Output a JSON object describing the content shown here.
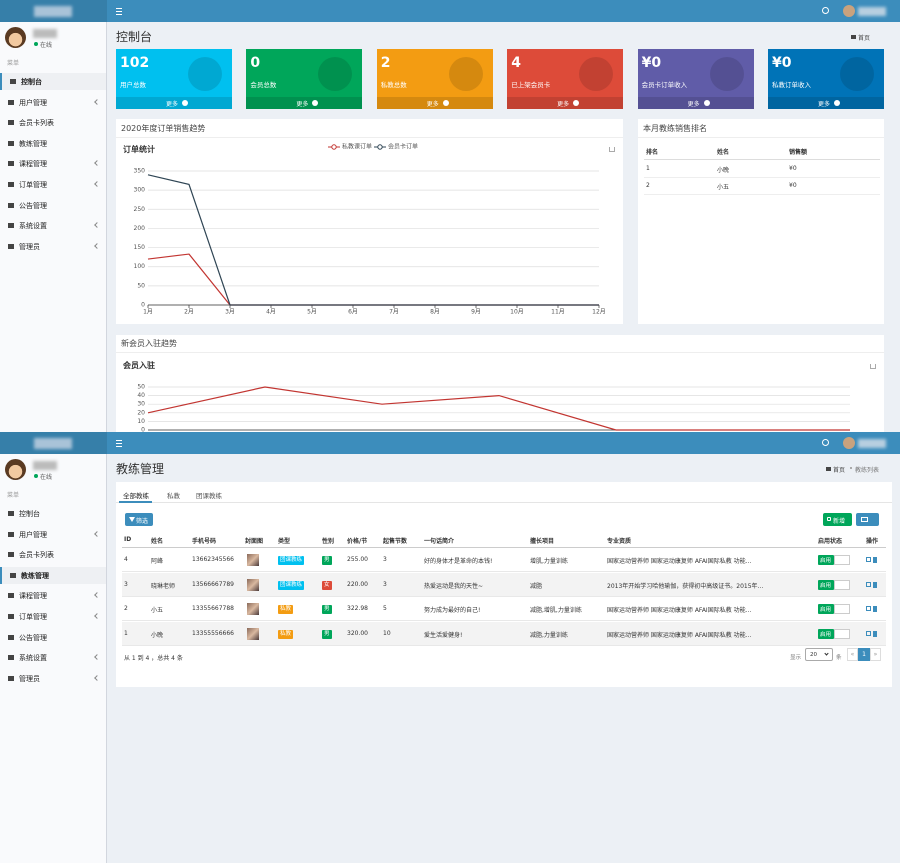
{
  "sidebar": {
    "status": "在线",
    "section": "菜单",
    "items": [
      {
        "label": "控制台",
        "submenu": false
      },
      {
        "label": "用户管理",
        "submenu": true
      },
      {
        "label": "会员卡列表",
        "submenu": false
      },
      {
        "label": "教练管理",
        "submenu": false
      },
      {
        "label": "课程管理",
        "submenu": true
      },
      {
        "label": "订单管理",
        "submenu": true
      },
      {
        "label": "公告管理",
        "submenu": false
      },
      {
        "label": "系统设置",
        "submenu": true
      },
      {
        "label": "管理员",
        "submenu": true
      }
    ]
  },
  "dashboard": {
    "title": "控制台",
    "breadcrumb": [
      "首页"
    ],
    "active_index": 0,
    "cards": [
      {
        "value": "102",
        "label": "用户总数",
        "more": "更多",
        "color": "#00c0ef"
      },
      {
        "value": "0",
        "label": "会员总数",
        "more": "更多",
        "color": "#00a65a"
      },
      {
        "value": "2",
        "label": "私教总数",
        "more": "更多",
        "color": "#f39c12"
      },
      {
        "value": "4",
        "label": "已上架会员卡",
        "more": "更多",
        "color": "#dd4b39"
      },
      {
        "value": "¥0",
        "label": "会员卡订单收入",
        "more": "更多",
        "color": "#605ca8"
      },
      {
        "value": "¥0",
        "label": "私教订单收入",
        "more": "更多",
        "color": "#0073b7"
      }
    ],
    "sales_chart": {
      "type": "line",
      "panel_title": "2020年度订单销售趋势",
      "title": "订单统计",
      "categories": [
        "1月",
        "2月",
        "3月",
        "4月",
        "5月",
        "6月",
        "7月",
        "8月",
        "9月",
        "10月",
        "11月",
        "12月"
      ],
      "series": [
        {
          "name": "私教课订单",
          "color": "#c23531",
          "values": [
            120,
            133,
            0,
            0,
            0,
            0,
            0,
            0,
            0,
            0,
            0,
            0
          ]
        },
        {
          "name": "会员卡订单",
          "color": "#2f4554",
          "values": [
            340,
            315,
            0,
            0,
            0,
            0,
            0,
            0,
            0,
            0,
            0,
            0
          ]
        }
      ],
      "ylim": [
        0,
        350
      ],
      "yticks": [
        0,
        50,
        100,
        150,
        200,
        250,
        300,
        350
      ],
      "grid": true
    },
    "ranking": {
      "title": "本月教练销售排名",
      "columns": [
        "排名",
        "姓名",
        "销售额"
      ],
      "rows": [
        [
          "1",
          "小晚",
          "¥0"
        ],
        [
          "2",
          "小五",
          "¥0"
        ]
      ]
    },
    "member_chart": {
      "type": "line",
      "panel_title": "新会员入驻趋势",
      "title": "会员入驻",
      "series": [
        {
          "color": "#c23531",
          "values": [
            20,
            50,
            30,
            40,
            0,
            0,
            0
          ]
        }
      ],
      "ylim": [
        0,
        50
      ],
      "yticks": [
        0,
        10,
        20,
        30,
        40,
        50
      ],
      "grid": true
    }
  },
  "coach_page": {
    "title": "教练管理",
    "breadcrumb": [
      "首页",
      "教练列表"
    ],
    "active_index": 3,
    "tabs": [
      "全部教练",
      "私教",
      "团课教练"
    ],
    "filter": "筛选",
    "add": "新增",
    "columns": [
      "ID",
      "姓名",
      "手机号码",
      "封面图",
      "类型",
      "性别",
      "价格/节",
      "起售节数",
      "一句话简介",
      "擅长项目",
      "专业资质",
      "启用状态",
      "操作"
    ],
    "rows": [
      {
        "id": "4",
        "name": "阿峰",
        "phone": "13662345566",
        "type": {
          "text": "团课教练",
          "color": "#00c0ef"
        },
        "gender": {
          "text": "男",
          "color": "#00a65a"
        },
        "price": "255.00",
        "min": "3",
        "intro": "好的身体才是革命的本钱!",
        "skill": "增肌,力量训练",
        "cert": "国家运动营养师 国家运动康复师 AFAI国际私教 功能...",
        "status": "启用"
      },
      {
        "id": "3",
        "name": "晓琳老师",
        "phone": "13566667789",
        "type": {
          "text": "团课教练",
          "color": "#00c0ef"
        },
        "gender": {
          "text": "女",
          "color": "#dd4b39"
        },
        "price": "220.00",
        "min": "3",
        "intro": "热爱运动是我的天性~",
        "skill": "减脂",
        "cert": "2013年开始学习哈他瑜伽，获得初中高级证书。2015年...",
        "status": "启用"
      },
      {
        "id": "2",
        "name": "小五",
        "phone": "13355667788",
        "type": {
          "text": "私教",
          "color": "#f39c12"
        },
        "gender": {
          "text": "男",
          "color": "#00a65a"
        },
        "price": "322.98",
        "min": "5",
        "intro": "努力成为最好的自己!",
        "skill": "减脂,增肌,力量训练",
        "cert": "国家运动营养师 国家运动康复师 AFAI国际私教 功能...",
        "status": "启用"
      },
      {
        "id": "1",
        "name": "小晚",
        "phone": "13355556666",
        "type": {
          "text": "私教",
          "color": "#f39c12"
        },
        "gender": {
          "text": "男",
          "color": "#00a65a"
        },
        "price": "320.00",
        "min": "10",
        "intro": "爱生活爱健身!",
        "skill": "减脂,力量训练",
        "cert": "国家运动营养师 国家运动康复师 AFAI国际私教 功能...",
        "status": "启用"
      }
    ],
    "summary": "从 1 到 4 ，总共 4 条",
    "pagination": {
      "show": "显示",
      "size": "20",
      "unit": "条",
      "prev": "«",
      "page": "1",
      "next": "»"
    }
  }
}
